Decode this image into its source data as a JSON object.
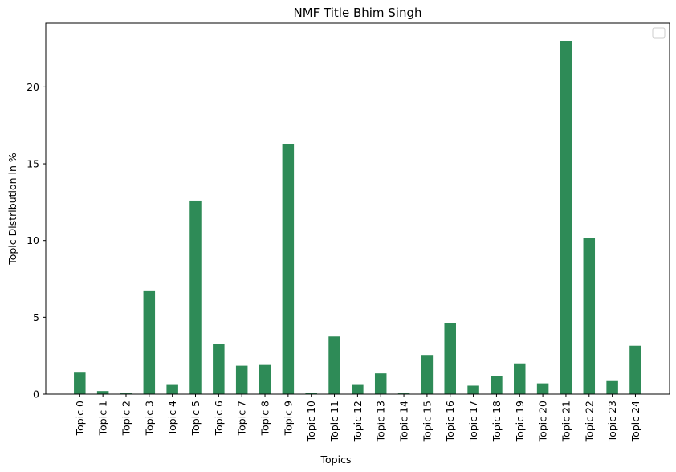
{
  "chart_data": {
    "type": "bar",
    "title": "NMF Title Bhim Singh",
    "xlabel": "Topics",
    "ylabel": "Topic Distribution in %",
    "categories": [
      "Topic 0",
      "Topic 1",
      "Topic 2",
      "Topic 3",
      "Topic 4",
      "Topic 5",
      "Topic 6",
      "Topic 7",
      "Topic 8",
      "Topic 9",
      "Topic 10",
      "Topic 11",
      "Topic 12",
      "Topic 13",
      "Topic 14",
      "Topic 15",
      "Topic 16",
      "Topic 17",
      "Topic 18",
      "Topic 19",
      "Topic 20",
      "Topic 21",
      "Topic 22",
      "Topic 23",
      "Topic 24"
    ],
    "values": [
      1.4,
      0.2,
      0.05,
      6.75,
      0.65,
      12.6,
      3.25,
      1.85,
      1.9,
      16.3,
      0.1,
      3.75,
      0.65,
      1.35,
      0.05,
      2.55,
      4.65,
      0.55,
      1.15,
      2.0,
      0.7,
      23.0,
      10.15,
      0.85,
      3.15
    ],
    "yticks": [
      "0",
      "5",
      "10",
      "15",
      "20"
    ],
    "ylim": [
      0,
      24.15
    ],
    "bar_color": "#2e8b57",
    "legend": "top-right",
    "grid": false
  }
}
